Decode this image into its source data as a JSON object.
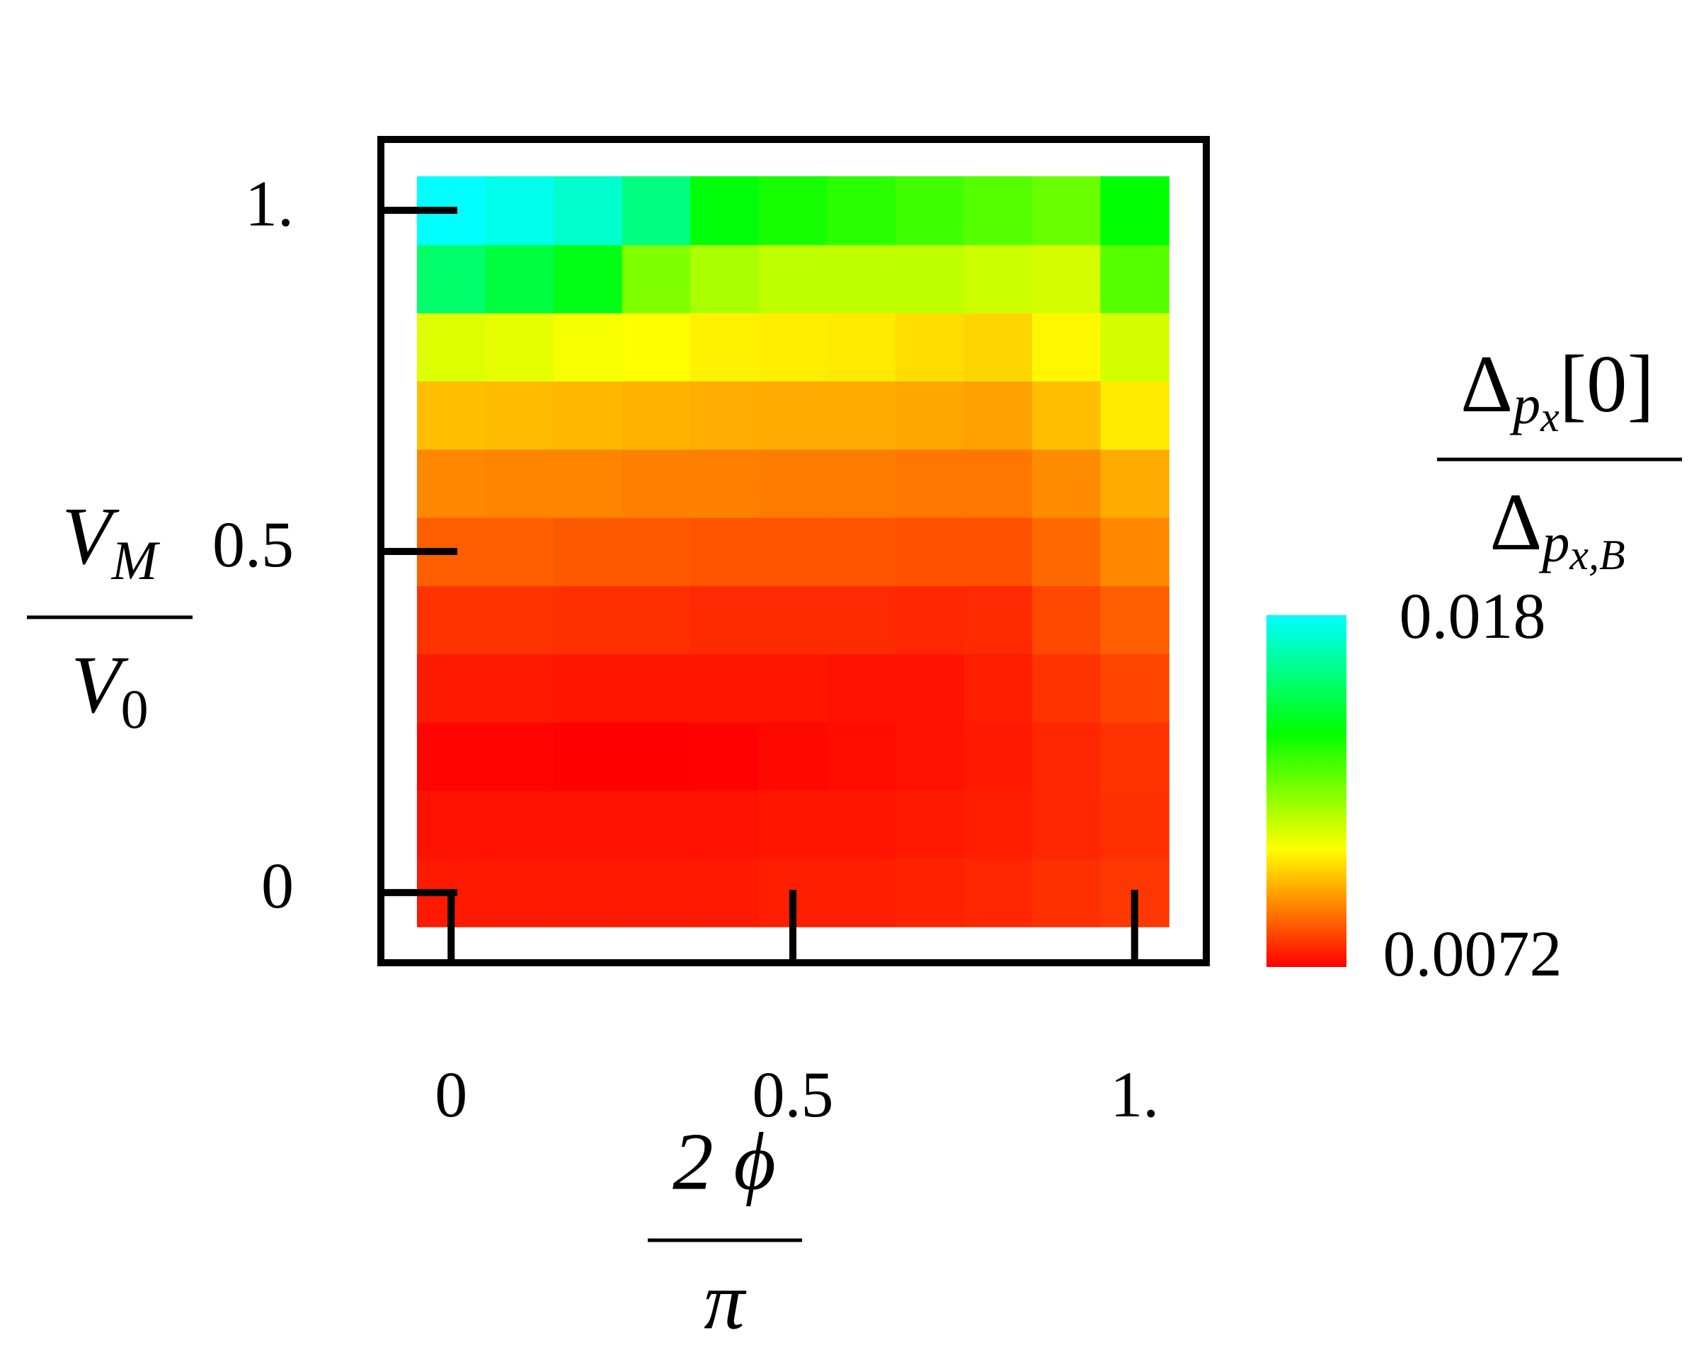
{
  "chart_data": {
    "type": "heatmap",
    "x": [
      0,
      0.1,
      0.2,
      0.3,
      0.4,
      0.5,
      0.6,
      0.7,
      0.8,
      0.9,
      1
    ],
    "y": [
      0,
      0.1,
      0.2,
      0.3,
      0.4,
      0.5,
      0.6,
      0.7,
      0.8,
      0.9,
      1
    ],
    "z": [
      [
        0.00756,
        0.00756,
        0.00756,
        0.00756,
        0.00756,
        0.00762,
        0.00762,
        0.00768,
        0.00774,
        0.00786,
        0.00798
      ],
      [
        0.00744,
        0.00744,
        0.00744,
        0.00744,
        0.00744,
        0.0075,
        0.0075,
        0.00756,
        0.00762,
        0.00774,
        0.00786
      ],
      [
        0.00726,
        0.00726,
        0.0072,
        0.0072,
        0.00723,
        0.00732,
        0.00738,
        0.00744,
        0.00756,
        0.00774,
        0.00792
      ],
      [
        0.00756,
        0.00756,
        0.0075,
        0.0075,
        0.0075,
        0.0075,
        0.00744,
        0.00744,
        0.00762,
        0.00792,
        0.00816
      ],
      [
        0.00792,
        0.00792,
        0.00786,
        0.00786,
        0.0078,
        0.0078,
        0.0078,
        0.00774,
        0.0078,
        0.00822,
        0.00852
      ],
      [
        0.00852,
        0.00852,
        0.00846,
        0.00846,
        0.0084,
        0.0084,
        0.0084,
        0.00834,
        0.00834,
        0.0087,
        0.00912
      ],
      [
        0.00912,
        0.00906,
        0.00906,
        0.009,
        0.009,
        0.00894,
        0.00894,
        0.00888,
        0.00888,
        0.00918,
        0.0096
      ],
      [
        0.0099,
        0.00984,
        0.00978,
        0.00972,
        0.00966,
        0.0096,
        0.0096,
        0.00954,
        0.00948,
        0.0099,
        0.0105
      ],
      [
        0.01128,
        0.01116,
        0.01092,
        0.0108,
        0.01062,
        0.01056,
        0.0105,
        0.01032,
        0.0102,
        0.01068,
        0.0114
      ],
      [
        0.0159,
        0.0153,
        0.0147,
        0.0126,
        0.012,
        0.0117,
        0.0117,
        0.0117,
        0.01152,
        0.0114,
        0.0132
      ],
      [
        0.018,
        0.0177,
        0.01728,
        0.0162,
        0.01452,
        0.0141,
        0.0138,
        0.0135,
        0.0132,
        0.0129,
        0.0144
      ]
    ],
    "xlim": [
      -0.05,
      1.05
    ],
    "ylim": [
      -0.05,
      1.05
    ],
    "xticks": [
      0,
      0.5,
      {
        "value": 1,
        "label": "1."
      }
    ],
    "yticks": [
      0,
      0.5,
      {
        "value": 1,
        "label": "1."
      }
    ],
    "zlim": [
      0.0072,
      0.018
    ],
    "zticks": [
      0.0072,
      0.018
    ],
    "xlabel": {
      "numerator": "2 ϕ",
      "denominator": "π"
    },
    "ylabel": {
      "numerator": {
        "base": "V",
        "sub": "M"
      },
      "denominator": {
        "base": "V",
        "sub": "0"
      }
    },
    "colorbar_label": {
      "numerator": {
        "base": "Δ",
        "sub": "p",
        "subsub": "x",
        "suffix": "[0]"
      },
      "denominator": {
        "base": "Δ",
        "sub": "p",
        "subsub": "x,B"
      }
    }
  }
}
